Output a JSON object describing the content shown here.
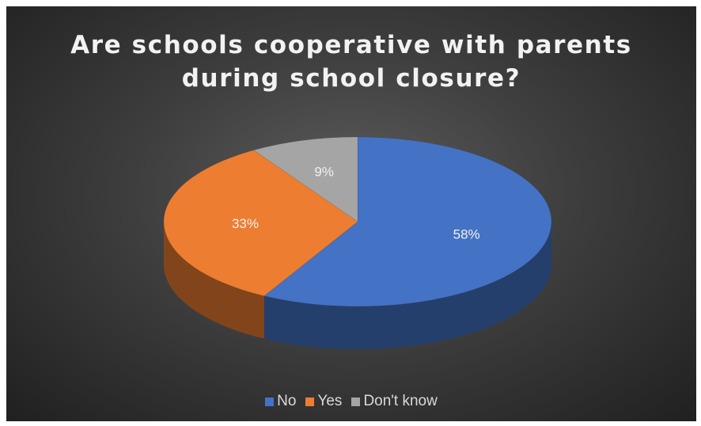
{
  "chart_data": {
    "type": "pie",
    "title_lines": [
      "Are schools cooperative with parents",
      "during school closure?"
    ],
    "categories": [
      "No",
      "Yes",
      "Don't know"
    ],
    "values": [
      58,
      33,
      9
    ],
    "labels": [
      "58%",
      "33%",
      "9%"
    ],
    "colors": [
      "#4472c4",
      "#ed7d31",
      "#a5a5a5"
    ],
    "style": "3d",
    "legend_position": "bottom"
  }
}
